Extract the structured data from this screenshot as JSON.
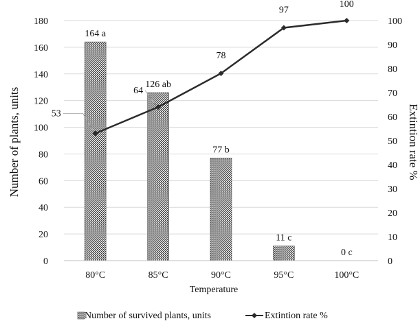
{
  "chart_data": {
    "type": "bar",
    "categories": [
      "80°C",
      "85°C",
      "90°C",
      "95°C",
      "100°C"
    ],
    "xlabel": "Temperature",
    "ylabel": "Number of plants, units",
    "y2label": "Extintion rate %",
    "ylim": [
      0,
      180
    ],
    "y2lim": [
      0,
      100
    ],
    "yticks": [
      0,
      20,
      40,
      60,
      80,
      100,
      120,
      140,
      160,
      180
    ],
    "y2ticks": [
      0,
      10,
      20,
      30,
      40,
      50,
      60,
      70,
      80,
      90,
      100
    ],
    "grid": "horizontal",
    "legend_position": "bottom",
    "series": [
      {
        "name": "Number of survived plants, units",
        "type": "bar",
        "axis": "left",
        "values": [
          164,
          126,
          77,
          11,
          0
        ],
        "labels": [
          "164 a",
          "126 ab",
          "77 b",
          "11 c",
          "0 c"
        ]
      },
      {
        "name": "Extintion rate %",
        "type": "line",
        "axis": "right",
        "values": [
          53,
          64,
          78,
          97,
          100
        ],
        "labels": [
          "53",
          "64",
          "78",
          "97",
          "100"
        ]
      }
    ],
    "colors": {
      "bar_fill": "#8c8c8c",
      "line": "#2b2b2b",
      "grid": "#d9d9d9"
    }
  }
}
